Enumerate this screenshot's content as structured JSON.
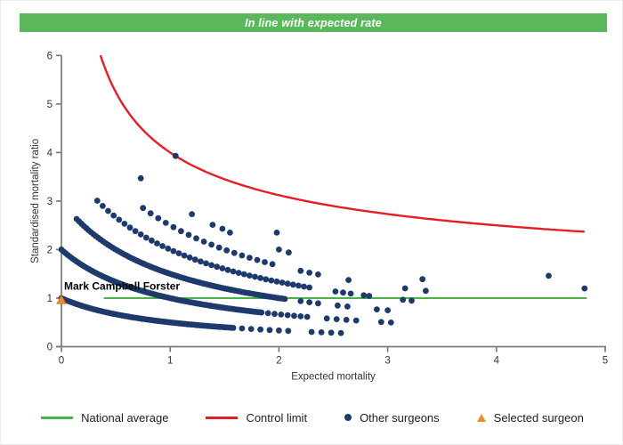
{
  "banner": {
    "text": "In line with expected rate",
    "color": "#5bb75b",
    "text_color": "#ffffff"
  },
  "chart_data": {
    "type": "scatter",
    "xlabel": "Expected mortality",
    "ylabel": "Standardised mortality ratio",
    "xlim": [
      0,
      5
    ],
    "ylim": [
      0,
      6
    ],
    "x_ticks": [
      0,
      1,
      2,
      3,
      4,
      5
    ],
    "y_ticks": [
      0,
      1,
      2,
      3,
      4,
      5,
      6
    ],
    "grid": false,
    "axis_color": "#7b7b7b",
    "tick_label_color": "#333333",
    "national_average": {
      "label": "National average",
      "y": 1,
      "x_start": 0.39,
      "x_end": 4.83,
      "color": "#46b446"
    },
    "control_limit": {
      "label": "Control limit",
      "formula": "y = 1 + 3/sqrt(x)",
      "base": 1,
      "coef": 3,
      "x_start": 0.362,
      "x_end": 4.82,
      "color": "#e41e25"
    },
    "other_surgeons": {
      "label": "Other surgeons",
      "color": "#1e3a6d",
      "marker_radius": 3.4,
      "arc_formula": "y = n / (x + 1)  (n = observed deaths)",
      "arcs": [
        {
          "n": 1,
          "runs": [
            [
              0.0,
              1.58,
              0.02
            ],
            [
              1.66,
              2.1,
              0.085
            ],
            [
              2.3,
              2.62,
              0.09
            ]
          ]
        },
        {
          "n": 2,
          "runs": [
            [
              0.0,
              1.84,
              0.02
            ],
            [
              1.9,
              2.3,
              0.06
            ],
            [
              2.44,
              2.72,
              0.09
            ],
            [
              2.94,
              3.03,
              0.09
            ]
          ]
        },
        {
          "n": 3,
          "runs": [
            [
              0.14,
              2.06,
              0.022
            ],
            [
              2.2,
              2.36,
              0.08
            ],
            [
              2.54,
              2.66,
              0.09
            ],
            [
              2.9,
              3.02,
              0.1
            ]
          ]
        },
        {
          "n": 4,
          "runs": [
            [
              0.33,
              2.3,
              0.05
            ],
            [
              2.52,
              2.68,
              0.07
            ],
            [
              2.78,
              2.84,
              0.05
            ],
            [
              3.14,
              3.22,
              0.08
            ]
          ]
        },
        {
          "n": 5,
          "runs": [
            [
              0.75,
              2.0,
              0.07
            ],
            [
              2.2,
              2.4,
              0.08
            ],
            [
              2.64,
              2.65,
              1
            ],
            [
              3.16,
              3.17,
              1
            ],
            [
              3.35,
              3.36,
              1
            ]
          ]
        }
      ],
      "extra_points": [
        [
          0.73,
          3.47
        ],
        [
          1.05,
          3.93
        ],
        [
          1.2,
          2.73
        ],
        [
          1.39,
          2.51
        ],
        [
          1.48,
          2.43
        ],
        [
          1.55,
          2.35
        ],
        [
          1.98,
          2.35
        ],
        [
          2.0,
          2.0
        ],
        [
          2.09,
          1.94
        ],
        [
          3.32,
          1.39
        ],
        [
          4.48,
          1.46
        ],
        [
          4.81,
          1.2
        ]
      ]
    },
    "selected_surgeon": {
      "label": "Selected surgeon",
      "x": 0.0,
      "y": 0.97,
      "color": "#f28b2b",
      "edge_color": "#d9731a",
      "annotation": "Mark Campbell Forster"
    }
  },
  "legend": {
    "items": [
      {
        "id": "national-average",
        "type": "line",
        "color": "#46b446",
        "label": "National average"
      },
      {
        "id": "control-limit",
        "type": "line",
        "color": "#e41e25",
        "label": "Control limit"
      },
      {
        "id": "other-surgeons",
        "type": "dot",
        "color": "#1e3a6d",
        "label": "Other surgeons"
      },
      {
        "id": "selected-surgeon",
        "type": "triangle",
        "color": "#f28b2b",
        "label": "Selected surgeon"
      }
    ]
  }
}
